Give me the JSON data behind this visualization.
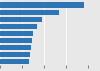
{
  "values": [
    19,
    13.5,
    9.5,
    8.5,
    7.5,
    7.2,
    7.0,
    6.8,
    6.5
  ],
  "bar_color": "#2e75b6",
  "background_color": "#e8e8e8",
  "plot_bg_color": "#e8e8e8",
  "xlim": [
    0,
    20
  ],
  "bar_height": 0.72,
  "grid_color": "#ffffff",
  "tick_color": "#555555"
}
